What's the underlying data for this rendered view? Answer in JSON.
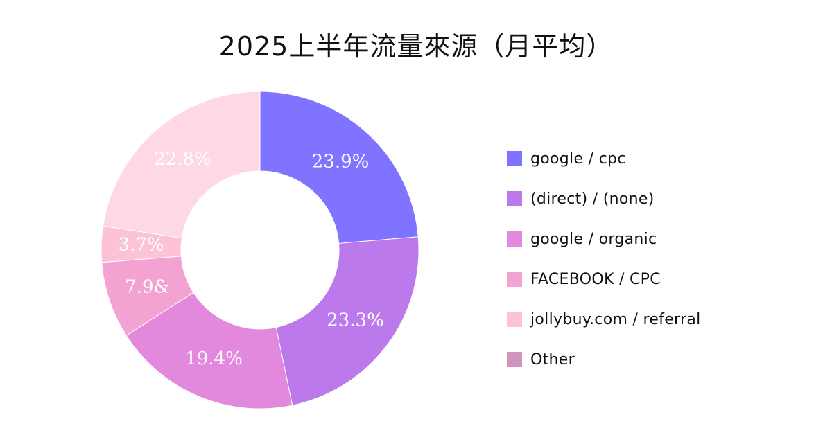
{
  "chart_data": {
    "type": "pie",
    "title": "2025上半年流量來源（月平均）",
    "legend_position": "right",
    "series": [
      {
        "name": "google / cpc",
        "value": 23.9,
        "label": "23.9%",
        "color": "#7f73ff"
      },
      {
        "name": "(direct) / (none)",
        "value": 23.3,
        "label": "23.3%",
        "color": "#bc79ec"
      },
      {
        "name": "google / organic",
        "value": 19.4,
        "label": "19.4%",
        "color": "#e289dd"
      },
      {
        "name": "FACEBOOK / CPC",
        "value": 7.9,
        "label": "7.9&",
        "color": "#f3a3d1"
      },
      {
        "name": "jollybuy.com / referral",
        "value": 3.7,
        "label": "3.7%",
        "color": "#fbc2d8"
      },
      {
        "name": "Other",
        "value": 22.8,
        "label": "22.8%",
        "color": "#fed8e4",
        "legend_color": "#d194bd"
      }
    ]
  }
}
